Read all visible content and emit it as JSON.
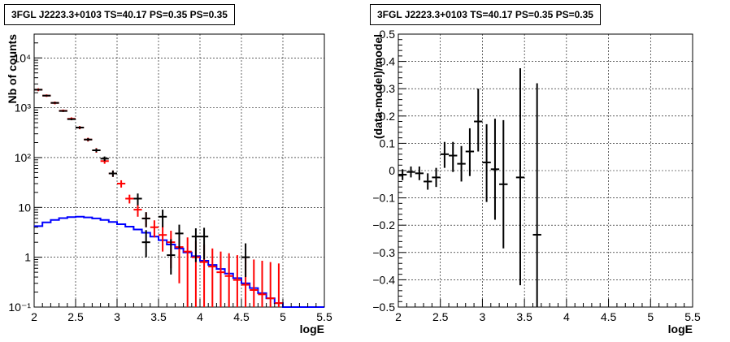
{
  "panels": [
    {
      "title": "3FGL J2223.3+0103 TS=40.17 PS=0.35 PS=0.35"
    },
    {
      "title": "3FGL J2223.3+0103 TS=40.17 PS=0.35 PS=0.35"
    }
  ],
  "chart_data": [
    {
      "type": "line",
      "title": "3FGL J2223.3+0103 TS=40.17 PS=0.35 PS=0.35",
      "xlabel": "logE",
      "ylabel": "Nb of counts",
      "xlim": [
        2,
        5.5
      ],
      "ylim": [
        0.1,
        30000
      ],
      "yscale": "log",
      "grid": true,
      "x_ticks": [
        "2",
        "2.5",
        "3",
        "3.5",
        "4",
        "4.5",
        "5",
        "5.5"
      ],
      "y_ticks": [
        {
          "label": "10⁻¹",
          "value": 0.1
        },
        {
          "label": "1",
          "value": 1
        },
        {
          "label": "10",
          "value": 10
        },
        {
          "label": "10²",
          "value": 100
        },
        {
          "label": "10³",
          "value": 1000
        },
        {
          "label": "10⁴",
          "value": 10000
        }
      ],
      "series": [
        {
          "color": "#0000ff",
          "kind": "step",
          "bin_edges": [
            2.0,
            2.1,
            2.2,
            2.3,
            2.4,
            2.5,
            2.6,
            2.7,
            2.8,
            2.9,
            3.0,
            3.1,
            3.2,
            3.3,
            3.4,
            3.5,
            3.6,
            3.7,
            3.8,
            3.9,
            4.0,
            4.1,
            4.2,
            4.3,
            4.4,
            4.5,
            4.6,
            4.7,
            4.8,
            4.9,
            5.0,
            5.1,
            5.2,
            5.3,
            5.4,
            5.5
          ],
          "values": [
            4.2,
            5.0,
            5.6,
            6.1,
            6.4,
            6.5,
            6.3,
            6.0,
            5.6,
            5.1,
            4.6,
            4.1,
            3.6,
            3.1,
            2.6,
            2.2,
            1.8,
            1.5,
            1.25,
            1.05,
            0.85,
            0.7,
            0.58,
            0.47,
            0.38,
            0.3,
            0.24,
            0.19,
            0.15,
            0.12,
            0.1,
            0.1,
            0.1,
            0.1,
            0.1
          ]
        },
        {
          "color": "#ff0000",
          "kind": "points",
          "points": [
            {
              "x": 2.05,
              "y": 2300,
              "lo": 2150,
              "hi": 2450
            },
            {
              "x": 2.15,
              "y": 1750,
              "lo": 1650,
              "hi": 1850
            },
            {
              "x": 2.25,
              "y": 1250,
              "lo": 1170,
              "hi": 1330
            },
            {
              "x": 2.35,
              "y": 870,
              "lo": 820,
              "hi": 920
            },
            {
              "x": 2.45,
              "y": 600,
              "lo": 560,
              "hi": 640
            },
            {
              "x": 2.55,
              "y": 400,
              "lo": 370,
              "hi": 430
            },
            {
              "x": 2.65,
              "y": 230,
              "lo": 210,
              "hi": 250
            },
            {
              "x": 2.75,
              "y": 140,
              "lo": 125,
              "hi": 155
            },
            {
              "x": 2.85,
              "y": 85,
              "lo": 75,
              "hi": 95
            },
            {
              "x": 2.95,
              "y": 48,
              "lo": 41,
              "hi": 55
            },
            {
              "x": 3.05,
              "y": 30,
              "lo": 25,
              "hi": 35
            },
            {
              "x": 3.15,
              "y": 15,
              "lo": 12,
              "hi": 18
            },
            {
              "x": 3.25,
              "y": 9,
              "lo": 6.5,
              "hi": 11.5
            },
            {
              "x": 3.35,
              "y": 6,
              "lo": 4,
              "hi": 8
            },
            {
              "x": 3.45,
              "y": 4,
              "lo": 2.5,
              "hi": 5.5
            },
            {
              "x": 3.55,
              "y": 2.8,
              "lo": 1.3,
              "hi": 4.3
            },
            {
              "x": 3.65,
              "y": 2,
              "lo": 0.6,
              "hi": 3.4
            },
            {
              "x": 3.75,
              "y": 1.6,
              "lo": 0.3,
              "hi": 2.9
            },
            {
              "x": 3.85,
              "y": 1.3,
              "lo": 0.1,
              "hi": 2.5
            },
            {
              "x": 3.95,
              "y": 1,
              "lo": 0.1,
              "hi": 2.1
            },
            {
              "x": 4.05,
              "y": 0.8,
              "lo": 0.1,
              "hi": 1.8
            },
            {
              "x": 4.15,
              "y": 0.65,
              "lo": 0.1,
              "hi": 1.5
            },
            {
              "x": 4.25,
              "y": 0.5,
              "lo": 0.1,
              "hi": 1.3
            },
            {
              "x": 4.35,
              "y": 0.42,
              "lo": 0.1,
              "hi": 1.2
            },
            {
              "x": 4.45,
              "y": 0.35,
              "lo": 0.1,
              "hi": 1.1
            },
            {
              "x": 4.55,
              "y": 0.28,
              "lo": 0.1,
              "hi": 1.0
            },
            {
              "x": 4.65,
              "y": 0.22,
              "lo": 0.1,
              "hi": 0.9
            },
            {
              "x": 4.75,
              "y": 0.18,
              "lo": 0.1,
              "hi": 0.85
            },
            {
              "x": 4.85,
              "y": 0.15,
              "lo": 0.1,
              "hi": 0.8
            },
            {
              "x": 4.95,
              "y": 0.12,
              "lo": 0.1,
              "hi": 0.75
            }
          ]
        },
        {
          "color": "#000000",
          "kind": "points",
          "points": [
            {
              "x": 2.05,
              "y": 2300,
              "lo": 2250,
              "hi": 2350
            },
            {
              "x": 2.15,
              "y": 1750,
              "lo": 1700,
              "hi": 1800
            },
            {
              "x": 2.25,
              "y": 1250,
              "lo": 1210,
              "hi": 1290
            },
            {
              "x": 2.35,
              "y": 860,
              "lo": 830,
              "hi": 890
            },
            {
              "x": 2.45,
              "y": 590,
              "lo": 565,
              "hi": 615
            },
            {
              "x": 2.55,
              "y": 400,
              "lo": 380,
              "hi": 420
            },
            {
              "x": 2.65,
              "y": 230,
              "lo": 215,
              "hi": 245
            },
            {
              "x": 2.75,
              "y": 140,
              "lo": 128,
              "hi": 152
            },
            {
              "x": 2.85,
              "y": 95,
              "lo": 85,
              "hi": 105
            },
            {
              "x": 2.95,
              "y": 48,
              "lo": 41,
              "hi": 55
            },
            {
              "x": 3.25,
              "y": 15,
              "lo": 11,
              "hi": 19
            },
            {
              "x": 3.35,
              "y": 6,
              "lo": 4,
              "hi": 8
            },
            {
              "x": 3.35,
              "y": 2,
              "lo": 1,
              "hi": 3.5
            },
            {
              "x": 3.55,
              "y": 6.5,
              "lo": 4,
              "hi": 9
            },
            {
              "x": 3.65,
              "y": 1.1,
              "lo": 0.45,
              "hi": 2.3
            },
            {
              "x": 3.75,
              "y": 3,
              "lo": 1.5,
              "hi": 4.5
            },
            {
              "x": 3.95,
              "y": 2.6,
              "lo": 0.8,
              "hi": 3.8
            },
            {
              "x": 4.05,
              "y": 2.6,
              "lo": 0.9,
              "hi": 3.9
            },
            {
              "x": 4.55,
              "y": 1,
              "lo": 0.4,
              "hi": 1.9
            }
          ]
        }
      ]
    },
    {
      "type": "scatter",
      "title": "3FGL J2223.3+0103 TS=40.17 PS=0.35 PS=0.35",
      "xlabel": "logE",
      "ylabel": "(data-model)/model",
      "xlim": [
        2,
        5.5
      ],
      "ylim": [
        -0.5,
        0.5
      ],
      "grid": true,
      "x_ticks": [
        "2",
        "2.5",
        "3",
        "3.5",
        "4",
        "4.5",
        "5",
        "5.5"
      ],
      "y_ticks": [
        "−0.5",
        "−0.4",
        "−0.3",
        "−0.2",
        "−0.1",
        "0",
        "0.1",
        "0.2",
        "0.3",
        "0.4",
        "0.5"
      ],
      "series": [
        {
          "color": "#000000",
          "points": [
            {
              "x": 2.05,
              "y": -0.015,
              "lo": -0.035,
              "hi": 0.005
            },
            {
              "x": 2.15,
              "y": -0.005,
              "lo": -0.025,
              "hi": 0.015
            },
            {
              "x": 2.25,
              "y": -0.01,
              "lo": -0.035,
              "hi": 0.015
            },
            {
              "x": 2.35,
              "y": -0.04,
              "lo": -0.07,
              "hi": -0.01
            },
            {
              "x": 2.45,
              "y": -0.025,
              "lo": -0.06,
              "hi": 0.01
            },
            {
              "x": 2.55,
              "y": 0.06,
              "lo": 0.01,
              "hi": 0.105
            },
            {
              "x": 2.65,
              "y": 0.055,
              "lo": -0.005,
              "hi": 0.105
            },
            {
              "x": 2.75,
              "y": 0.025,
              "lo": -0.04,
              "hi": 0.09
            },
            {
              "x": 2.85,
              "y": 0.07,
              "lo": -0.02,
              "hi": 0.155
            },
            {
              "x": 2.95,
              "y": 0.18,
              "lo": 0.07,
              "hi": 0.3
            },
            {
              "x": 3.05,
              "y": 0.03,
              "lo": -0.115,
              "hi": 0.17
            },
            {
              "x": 3.15,
              "y": 0.005,
              "lo": -0.18,
              "hi": 0.19
            },
            {
              "x": 3.25,
              "y": -0.05,
              "lo": -0.285,
              "hi": 0.185
            },
            {
              "x": 3.45,
              "y": -0.025,
              "lo": -0.42,
              "hi": 0.375
            },
            {
              "x": 3.65,
              "y": -0.235,
              "lo": -0.5,
              "hi": 0.32
            }
          ]
        }
      ]
    }
  ]
}
